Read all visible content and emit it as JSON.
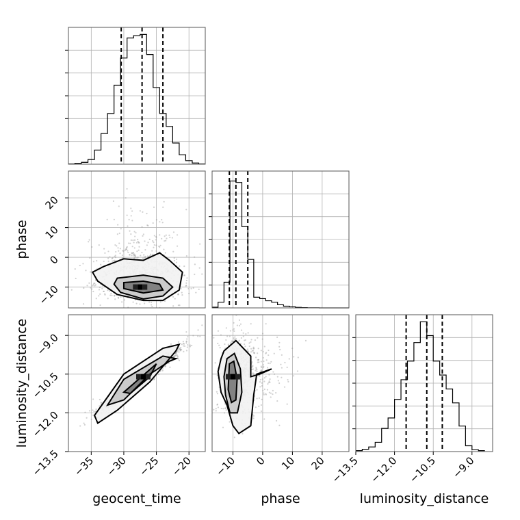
{
  "chart_data": {
    "type": "scatter",
    "title": "",
    "parameters": [
      "geocent_time",
      "phase",
      "luminosity_distance"
    ],
    "axes": {
      "geocent_time": {
        "label": "geocent_time",
        "range": [
          -38.5,
          -17.5
        ],
        "ticks": [
          -35,
          -30,
          -25,
          -20
        ],
        "tick_labels": [
          "−35",
          "−30",
          "−25",
          "−20"
        ]
      },
      "phase": {
        "label": "phase",
        "range": [
          -17,
          29
        ],
        "ticks": [
          -10,
          0,
          10,
          20
        ],
        "tick_labels": [
          "−10",
          "0",
          "10",
          "20"
        ]
      },
      "luminosity_distance": {
        "label": "luminosity_distance",
        "range": [
          -13.5,
          -8.2
        ],
        "ticks": [
          -13.5,
          -12.0,
          -10.5,
          -9.0
        ],
        "tick_labels": [
          "−13.5",
          "−12.0",
          "−10.5",
          "−9.0"
        ]
      }
    },
    "diagonal_histograms": [
      {
        "param": "geocent_time",
        "bin_edges": [
          -38.5,
          -37.5,
          -36.5,
          -35.5,
          -34.5,
          -33.5,
          -32.5,
          -31.5,
          -30.5,
          -29.5,
          -28.5,
          -27.5,
          -26.5,
          -25.5,
          -24.5,
          -23.5,
          -22.5,
          -21.5,
          -20.5,
          -19.5,
          -18.5,
          -17.5
        ],
        "counts": [
          1,
          4,
          8,
          20,
          60,
          130,
          215,
          335,
          450,
          535,
          545,
          550,
          465,
          325,
          215,
          160,
          90,
          40,
          15,
          5,
          1
        ],
        "max_count": 580,
        "quantiles": [
          -30.4,
          -27.2,
          -24.0
        ]
      },
      {
        "param": "phase",
        "bin_edges": [
          -17,
          -15,
          -13,
          -11,
          -9,
          -7,
          -5,
          -3,
          -1,
          1,
          3,
          5,
          7,
          9,
          11,
          13,
          15,
          17,
          19,
          21,
          23,
          25,
          27,
          29
        ],
        "counts": [
          5,
          40,
          180,
          890,
          880,
          570,
          340,
          75,
          65,
          50,
          40,
          22,
          12,
          8,
          4,
          2,
          1,
          1,
          0,
          0,
          0,
          0,
          0
        ],
        "max_count": 960,
        "quantiles": [
          -11.2,
          -9.0,
          -5.0
        ]
      },
      {
        "param": "luminosity_distance",
        "bin_edges": [
          -13.5,
          -13.25,
          -13.0,
          -12.75,
          -12.5,
          -12.25,
          -12.0,
          -11.75,
          -11.5,
          -11.25,
          -11.0,
          -10.75,
          -10.5,
          -10.25,
          -10.0,
          -9.75,
          -9.5,
          -9.25,
          -9.0,
          -8.75,
          -8.5
        ],
        "counts": [
          4,
          10,
          20,
          40,
          100,
          145,
          225,
          310,
          390,
          470,
          560,
          500,
          390,
          330,
          270,
          210,
          110,
          25,
          8,
          4
        ],
        "max_count": 590,
        "quantiles": [
          -11.55,
          -10.75,
          -10.15
        ]
      }
    ],
    "pair_plots": [
      {
        "x": "geocent_time",
        "y": "phase",
        "peak": {
          "x": -27.5,
          "y": -10.0
        },
        "contours": [
          [
            [
              -33,
              -3
            ],
            [
              -30,
              -0.5
            ],
            [
              -27,
              -1
            ],
            [
              -24.5,
              1.5
            ],
            [
              -23,
              -1
            ],
            [
              -21,
              -5
            ],
            [
              -21.5,
              -11
            ],
            [
              -24,
              -14.5
            ],
            [
              -27,
              -14.5
            ],
            [
              -31,
              -12.5
            ],
            [
              -34,
              -8
            ],
            [
              -34.8,
              -5
            ]
          ],
          [
            [
              -31,
              -7
            ],
            [
              -27,
              -6
            ],
            [
              -24,
              -7
            ],
            [
              -22.5,
              -10
            ],
            [
              -24,
              -13
            ],
            [
              -27,
              -14
            ],
            [
              -30.5,
              -11.8
            ],
            [
              -31.5,
              -9
            ]
          ],
          [
            [
              -30,
              -8.5
            ],
            [
              -27,
              -8
            ],
            [
              -24.5,
              -9
            ],
            [
              -24,
              -11
            ],
            [
              -27,
              -12
            ],
            [
              -30,
              -10.5
            ]
          ]
        ]
      },
      {
        "x": "geocent_time",
        "y": "luminosity_distance",
        "peak": {
          "x": -27.0,
          "y": -10.6
        },
        "contours": [
          [
            [
              -22,
              -9.6
            ],
            [
              -21.5,
              -9.35
            ],
            [
              -24,
              -9.5
            ],
            [
              -30,
              -10.5
            ],
            [
              -34.5,
              -12.1
            ],
            [
              -34,
              -12.4
            ],
            [
              -31,
              -11.9
            ],
            [
              -26,
              -10.8
            ]
          ],
          [
            [
              -22,
              -9.9
            ],
            [
              -24,
              -9.8
            ],
            [
              -30,
              -10.7
            ],
            [
              -32.5,
              -11.7
            ],
            [
              -30,
              -11.5
            ],
            [
              -26,
              -10.5
            ],
            [
              -23,
              -10.0
            ]
          ],
          [
            [
              -25,
              -10.1
            ],
            [
              -30,
              -11.2
            ],
            [
              -29,
              -11.25
            ],
            [
              -26,
              -10.6
            ]
          ]
        ]
      },
      {
        "x": "phase",
        "y": "luminosity_distance",
        "peak": {
          "x": -10.0,
          "y": -10.6
        },
        "contours": [
          [
            [
              -13,
              -9.6
            ],
            [
              -9,
              -9.2
            ],
            [
              -4,
              -9.8
            ],
            [
              -4,
              -10.6
            ],
            [
              -1,
              -10.5
            ],
            [
              3,
              -10.3
            ],
            [
              -2,
              -10.5
            ],
            [
              -3,
              -11.3
            ],
            [
              -4,
              -12.5
            ],
            [
              -8,
              -12.8
            ],
            [
              -10,
              -12.5
            ],
            [
              -12,
              -11.7
            ],
            [
              -14,
              -11.2
            ],
            [
              -15,
              -10.4
            ],
            [
              -14,
              -9.9
            ]
          ],
          [
            [
              -12,
              -9.9
            ],
            [
              -9.5,
              -9.7
            ],
            [
              -7.5,
              -10.3
            ],
            [
              -7,
              -11.2
            ],
            [
              -8.5,
              -12.0
            ],
            [
              -11,
              -12.0
            ],
            [
              -12.5,
              -11.3
            ],
            [
              -13,
              -10.6
            ]
          ],
          [
            [
              -11.2,
              -10.1
            ],
            [
              -9.7,
              -10.0
            ],
            [
              -8.6,
              -10.7
            ],
            [
              -9,
              -11.5
            ],
            [
              -10.5,
              -11.6
            ],
            [
              -11.6,
              -11.1
            ]
          ]
        ]
      }
    ]
  }
}
